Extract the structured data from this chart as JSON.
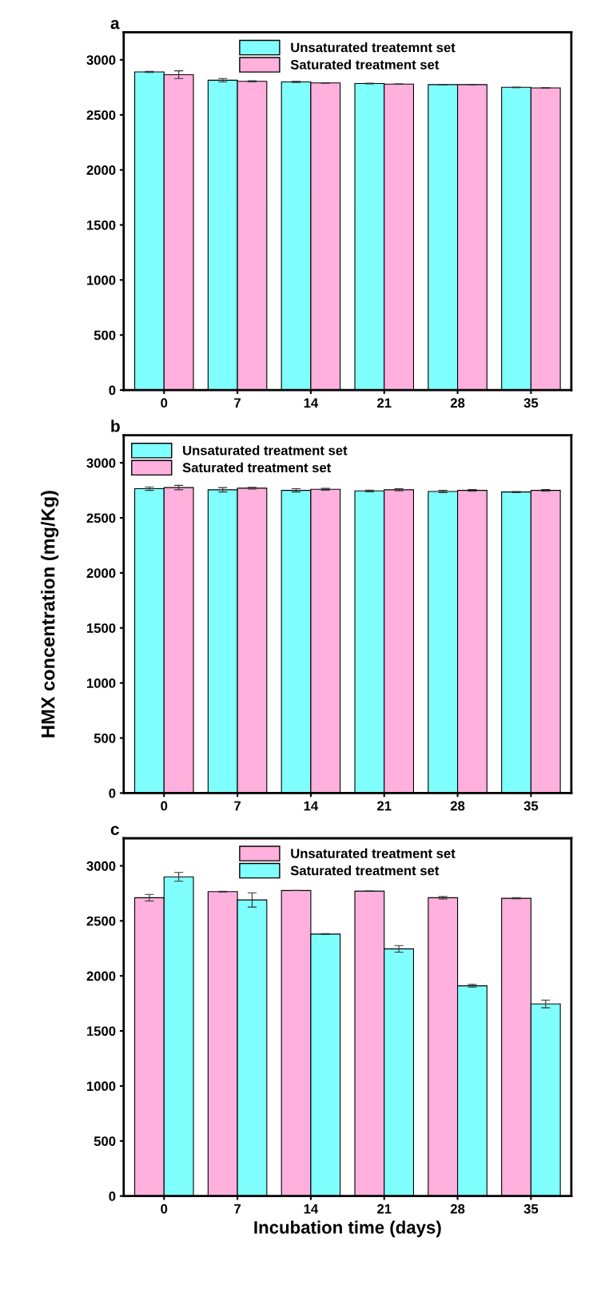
{
  "chart_data": [
    {
      "type": "bar",
      "title": "a",
      "categories": [
        "0",
        "7",
        "14",
        "21",
        "28",
        "35"
      ],
      "ylim": [
        0,
        3250
      ],
      "yticks": [
        0,
        500,
        1000,
        1500,
        2000,
        2500,
        3000
      ],
      "legend": "top",
      "grid": false,
      "series": [
        {
          "name": "Unsaturated treatemnt set",
          "color": "#80ffff",
          "values": [
            2890,
            2815,
            2800,
            2785,
            2775,
            2750
          ],
          "errors": [
            5,
            15,
            5,
            3,
            3,
            2
          ]
        },
        {
          "name": "Saturated treatment set",
          "color": "#ffb0dc",
          "values": [
            2865,
            2805,
            2790,
            2780,
            2775,
            2745
          ],
          "errors": [
            35,
            5,
            2,
            1,
            1,
            1
          ]
        }
      ]
    },
    {
      "type": "bar",
      "title": "b",
      "ylabel": "HMX concentration (mg/Kg)",
      "categories": [
        "0",
        "7",
        "14",
        "21",
        "28",
        "35"
      ],
      "ylim": [
        0,
        3250
      ],
      "yticks": [
        0,
        500,
        1000,
        1500,
        2000,
        2500,
        3000
      ],
      "legend": "top left",
      "grid": false,
      "series": [
        {
          "name": "Unsaturated treatment set",
          "color": "#80ffff",
          "values": [
            2765,
            2755,
            2750,
            2745,
            2740,
            2735
          ],
          "errors": [
            15,
            20,
            15,
            8,
            10,
            5
          ]
        },
        {
          "name": "Saturated treatment set",
          "color": "#ffb0dc",
          "values": [
            2775,
            2770,
            2760,
            2755,
            2750,
            2750
          ],
          "errors": [
            20,
            8,
            8,
            10,
            8,
            8
          ]
        }
      ]
    },
    {
      "type": "bar",
      "title": "c",
      "xlabel": "Incubation time (days)",
      "categories": [
        "0",
        "7",
        "14",
        "21",
        "28",
        "35"
      ],
      "ylim": [
        0,
        3250
      ],
      "yticks": [
        0,
        500,
        1000,
        1500,
        2000,
        2500,
        3000
      ],
      "legend": "top",
      "grid": false,
      "series": [
        {
          "name": "Unsaturated treatment set",
          "color": "#ffb0dc",
          "values": [
            2710,
            2765,
            2775,
            2770,
            2710,
            2705
          ],
          "errors": [
            30,
            3,
            1,
            1,
            12,
            5
          ]
        },
        {
          "name": "Saturated treatment set",
          "color": "#80ffff",
          "values": [
            2900,
            2690,
            2380,
            2245,
            1910,
            1745
          ],
          "errors": [
            40,
            65,
            3,
            30,
            12,
            35
          ]
        }
      ]
    }
  ]
}
